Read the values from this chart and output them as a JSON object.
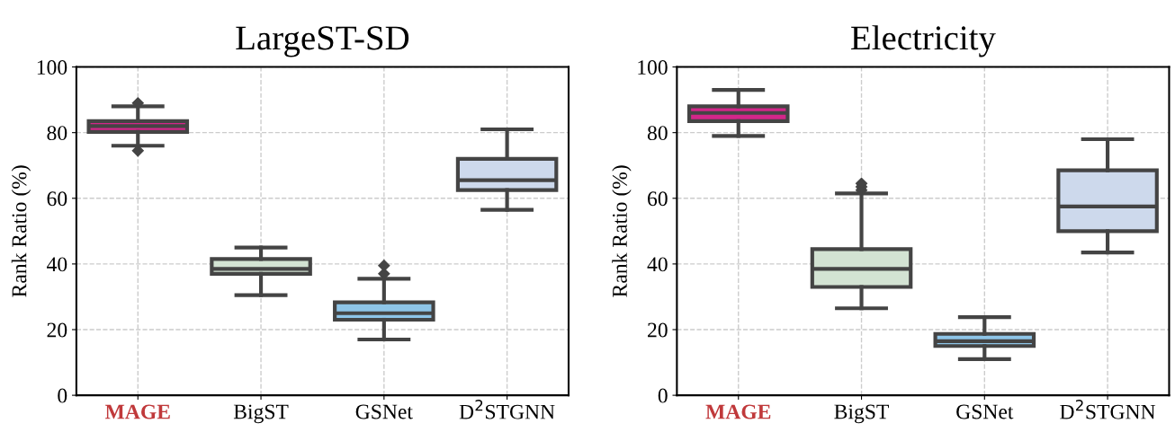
{
  "chart_data": [
    {
      "type": "box",
      "title": "LargeST-SD",
      "ylabel": "Rank Ratio (%)",
      "categories": [
        "MAGE",
        "BigST",
        "GSNet",
        "D$^{2}$STGNN"
      ],
      "colors": [
        "#d3268a",
        "#d3e3d3",
        "#8ec5e8",
        "#cdd9ec"
      ],
      "boxes": [
        {
          "low": 76,
          "q1": 80.2,
          "median": 82,
          "q3": 83.5,
          "high": 88,
          "outliers": [
            89,
            74.5
          ]
        },
        {
          "low": 30.5,
          "q1": 37,
          "median": 38.5,
          "q3": 41.5,
          "high": 45
        },
        {
          "low": 17,
          "q1": 23,
          "median": 25,
          "q3": 28.3,
          "high": 35.5,
          "outliers": [
            37,
            39.5
          ]
        },
        {
          "low": 56.5,
          "q1": 62.5,
          "median": 65.5,
          "q3": 72,
          "high": 81
        }
      ],
      "ylim": [
        0,
        100
      ],
      "yticks": [
        0,
        20,
        40,
        60,
        80,
        100
      ],
      "grid": true
    },
    {
      "type": "box",
      "title": "Electricity",
      "ylabel": "Rank Ratio (%)",
      "categories": [
        "MAGE",
        "BigST",
        "GSNet",
        "D$^{2}$STGNN"
      ],
      "colors": [
        "#d3268a",
        "#d3e3d3",
        "#8ec5e8",
        "#cdd9ec"
      ],
      "boxes": [
        {
          "low": 79,
          "q1": 83.5,
          "median": 86,
          "q3": 88,
          "high": 93
        },
        {
          "low": 26.5,
          "q1": 33,
          "median": 38.5,
          "q3": 44.5,
          "high": 61.5,
          "outliers": [
            62.5,
            63.5,
            64.5
          ]
        },
        {
          "low": 11,
          "q1": 15,
          "median": 16.5,
          "q3": 18.7,
          "high": 23.8
        },
        {
          "low": 43.5,
          "q1": 50,
          "median": 57.5,
          "q3": 68.5,
          "high": 78
        }
      ],
      "ylim": [
        0,
        100
      ],
      "yticks": [
        0,
        20,
        40,
        60,
        80,
        100
      ],
      "grid": true
    }
  ]
}
